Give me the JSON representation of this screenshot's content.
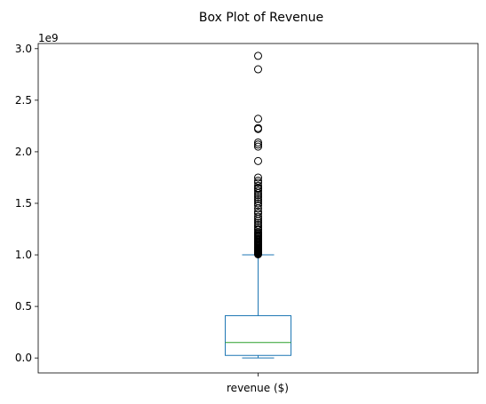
{
  "chart_data": {
    "type": "box",
    "title": "Box Plot of Revenue",
    "category": "revenue ($)",
    "multiplier_label": "1e9",
    "ylim": [
      -0.145,
      3.05
    ],
    "yticks": [
      0.0,
      0.5,
      1.0,
      1.5,
      2.0,
      2.5,
      3.0
    ],
    "ytick_labels": [
      "0.0",
      "0.5",
      "1.0",
      "1.5",
      "2.0",
      "2.5",
      "3.0"
    ],
    "box": {
      "whisker_low": 0.0,
      "q1": 0.025,
      "median": 0.15,
      "q3": 0.41,
      "whisker_high": 1.0
    },
    "outliers": [
      2.93,
      2.8,
      2.32,
      2.23,
      2.22,
      2.09,
      2.07,
      2.05,
      1.91,
      1.75,
      1.72,
      1.7,
      1.67,
      1.65,
      1.64,
      1.62,
      1.6,
      1.58,
      1.56,
      1.54,
      1.52,
      1.5,
      1.48,
      1.45,
      1.42,
      1.4,
      1.37,
      1.35,
      1.33,
      1.31,
      1.29,
      1.27,
      1.25,
      1.24,
      1.22,
      1.21,
      1.2,
      1.19,
      1.18,
      1.17,
      1.16,
      1.15,
      1.14,
      1.13,
      1.12,
      1.11,
      1.1,
      1.09,
      1.08,
      1.07,
      1.065,
      1.06,
      1.055,
      1.05,
      1.045,
      1.04,
      1.035,
      1.03,
      1.025,
      1.02,
      1.015,
      1.01,
      1.005
    ],
    "colors": {
      "box": "#1f77b4",
      "median": "#2ca02c",
      "outlier": "#000000",
      "axes": "#000000"
    },
    "grid": false,
    "legend": "none"
  }
}
